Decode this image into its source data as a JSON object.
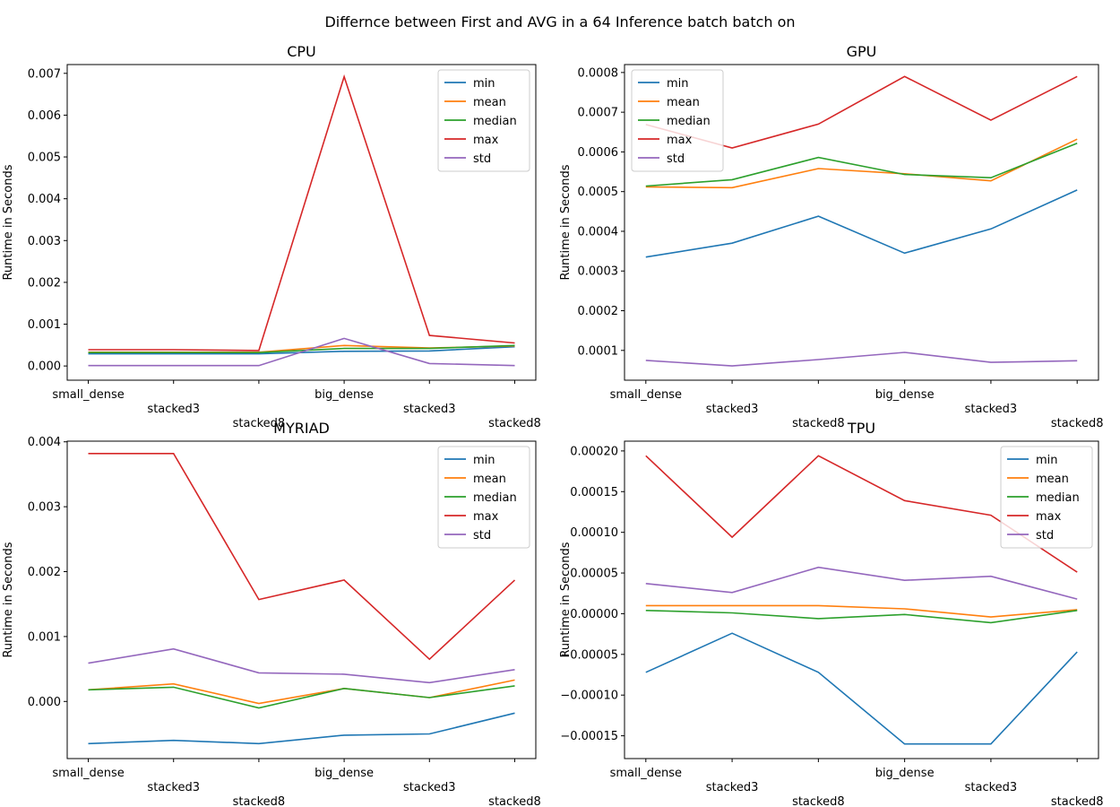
{
  "figure": {
    "suptitle": "Differnce between First and AVG in a 64 Inference batch batch on"
  },
  "chart_data": [
    {
      "type": "line",
      "title": "CPU",
      "xlabel": "",
      "ylabel": "Runtime in Seconds",
      "categories": [
        "small_dense",
        "stacked3",
        "stacked8",
        "big_dense",
        "stacked3",
        "stacked8"
      ],
      "ylim": [
        -0.00034,
        0.00721
      ],
      "yticks": [
        0.0,
        0.001,
        0.002,
        0.003,
        0.004,
        0.005,
        0.006,
        0.007
      ],
      "ytick_labels": [
        "0.000",
        "0.001",
        "0.002",
        "0.003",
        "0.004",
        "0.005",
        "0.006",
        "0.007"
      ],
      "legend_position": "top-right",
      "series": [
        {
          "name": "min",
          "color": "#1f77b4",
          "values": [
            0.00029,
            0.00029,
            0.00029,
            0.00035,
            0.00036,
            0.00046
          ]
        },
        {
          "name": "mean",
          "color": "#ff7f0e",
          "values": [
            0.00033,
            0.00033,
            0.00033,
            0.00049,
            0.00043,
            0.00048
          ]
        },
        {
          "name": "median",
          "color": "#2ca02c",
          "values": [
            0.00032,
            0.00032,
            0.00032,
            0.00042,
            0.00042,
            0.00049
          ]
        },
        {
          "name": "max",
          "color": "#d62728",
          "values": [
            0.00039,
            0.00039,
            0.00037,
            0.00692,
            0.00073,
            0.00055
          ]
        },
        {
          "name": "std",
          "color": "#9467bd",
          "values": [
            1e-05,
            1e-05,
            1e-05,
            0.00066,
            6e-05,
            1e-05
          ]
        }
      ]
    },
    {
      "type": "line",
      "title": "GPU",
      "xlabel": "",
      "ylabel": "Runtime in Seconds",
      "categories": [
        "small_dense",
        "stacked3",
        "stacked8",
        "big_dense",
        "stacked3",
        "stacked8"
      ],
      "ylim": [
        2.5e-05,
        0.00082
      ],
      "yticks": [
        0.0001,
        0.0002,
        0.0003,
        0.0004,
        0.0005,
        0.0006,
        0.0007,
        0.0008
      ],
      "ytick_labels": [
        "0.0001",
        "0.0002",
        "0.0003",
        "0.0004",
        "0.0005",
        "0.0006",
        "0.0007",
        "0.0008"
      ],
      "legend_position": "top-left",
      "series": [
        {
          "name": "min",
          "color": "#1f77b4",
          "values": [
            0.000335,
            0.00037,
            0.000438,
            0.000345,
            0.000406,
            0.000504
          ]
        },
        {
          "name": "mean",
          "color": "#ff7f0e",
          "values": [
            0.000512,
            0.00051,
            0.000558,
            0.000545,
            0.000527,
            0.000632
          ]
        },
        {
          "name": "median",
          "color": "#2ca02c",
          "values": [
            0.000514,
            0.00053,
            0.000586,
            0.000543,
            0.000535,
            0.000622
          ]
        },
        {
          "name": "max",
          "color": "#d62728",
          "values": [
            0.000669,
            0.00061,
            0.00067,
            0.00079,
            0.00068,
            0.00079
          ]
        },
        {
          "name": "std",
          "color": "#9467bd",
          "values": [
            7.5e-05,
            6.1e-05,
            7.7e-05,
            9.5e-05,
            7e-05,
            7.4e-05
          ]
        }
      ]
    },
    {
      "type": "line",
      "title": "MYRIAD",
      "xlabel": "",
      "ylabel": "Runtime in Seconds",
      "categories": [
        "small_dense",
        "stacked3",
        "stacked8",
        "big_dense",
        "stacked3",
        "stacked8"
      ],
      "ylim": [
        -0.00088,
        0.00401
      ],
      "yticks": [
        0.0,
        0.001,
        0.002,
        0.003,
        0.004
      ],
      "ytick_labels": [
        "0.000",
        "0.001",
        "0.002",
        "0.003",
        "0.004"
      ],
      "legend_position": "top-right",
      "series": [
        {
          "name": "min",
          "color": "#1f77b4",
          "values": [
            -0.00065,
            -0.0006,
            -0.00065,
            -0.00052,
            -0.0005,
            -0.00018
          ]
        },
        {
          "name": "mean",
          "color": "#ff7f0e",
          "values": [
            0.00018,
            0.00027,
            -3e-05,
            0.0002,
            6e-05,
            0.00033
          ]
        },
        {
          "name": "median",
          "color": "#2ca02c",
          "values": [
            0.00018,
            0.00022,
            -0.0001,
            0.0002,
            6e-05,
            0.00024
          ]
        },
        {
          "name": "max",
          "color": "#d62728",
          "values": [
            0.00382,
            0.00382,
            0.00157,
            0.00187,
            0.00065,
            0.00187
          ]
        },
        {
          "name": "std",
          "color": "#9467bd",
          "values": [
            0.00059,
            0.00081,
            0.00044,
            0.00042,
            0.00029,
            0.00049
          ]
        }
      ]
    },
    {
      "type": "line",
      "title": "TPU",
      "xlabel": "",
      "ylabel": "Runtime in Seconds",
      "categories": [
        "small_dense",
        "stacked3",
        "stacked8",
        "big_dense",
        "stacked3",
        "stacked8"
      ],
      "ylim": [
        -0.000178,
        0.000212
      ],
      "yticks": [
        -0.00015,
        -0.0001,
        -5e-05,
        0.0,
        5e-05,
        0.0001,
        0.00015,
        0.0002
      ],
      "ytick_labels": [
        "−0.00015",
        "−0.00010",
        "−0.00005",
        "0.00000",
        "0.00005",
        "0.00010",
        "0.00015",
        "0.00020"
      ],
      "legend_position": "top-right",
      "series": [
        {
          "name": "min",
          "color": "#1f77b4",
          "values": [
            -7.2e-05,
            -2.4e-05,
            -7.2e-05,
            -0.00016,
            -0.00016,
            -4.7e-05
          ]
        },
        {
          "name": "mean",
          "color": "#ff7f0e",
          "values": [
            1e-05,
            1e-05,
            1e-05,
            6e-06,
            -4e-06,
            5e-06
          ]
        },
        {
          "name": "median",
          "color": "#2ca02c",
          "values": [
            4e-06,
            1e-06,
            -6e-06,
            -1e-06,
            -1.1e-05,
            4e-06
          ]
        },
        {
          "name": "max",
          "color": "#d62728",
          "values": [
            0.000194,
            9.4e-05,
            0.000194,
            0.000139,
            0.000121,
            5.1e-05
          ]
        },
        {
          "name": "std",
          "color": "#9467bd",
          "values": [
            3.7e-05,
            2.6e-05,
            5.7e-05,
            4.1e-05,
            4.6e-05,
            1.8e-05
          ]
        }
      ]
    }
  ]
}
